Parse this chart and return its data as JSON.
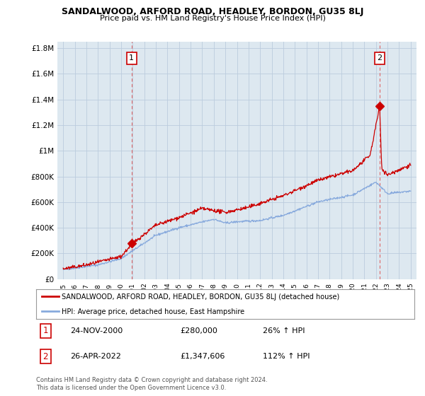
{
  "title": "SANDALWOOD, ARFORD ROAD, HEADLEY, BORDON, GU35 8LJ",
  "subtitle": "Price paid vs. HM Land Registry's House Price Index (HPI)",
  "legend_line1": "SANDALWOOD, ARFORD ROAD, HEADLEY, BORDON, GU35 8LJ (detached house)",
  "legend_line2": "HPI: Average price, detached house, East Hampshire",
  "sale1_label": "1",
  "sale1_date": "24-NOV-2000",
  "sale1_price": "£280,000",
  "sale1_hpi": "26% ↑ HPI",
  "sale2_label": "2",
  "sale2_date": "26-APR-2022",
  "sale2_price": "£1,347,606",
  "sale2_hpi": "112% ↑ HPI",
  "footer": "Contains HM Land Registry data © Crown copyright and database right 2024.\nThis data is licensed under the Open Government Licence v3.0.",
  "sale_color": "#cc0000",
  "hpi_color": "#88aadd",
  "vline_color": "#dd6666",
  "ylim": [
    0,
    1850000
  ],
  "yticks": [
    0,
    200000,
    400000,
    600000,
    800000,
    1000000,
    1200000,
    1400000,
    1600000,
    1800000
  ],
  "ytick_labels": [
    "£0",
    "£200K",
    "£400K",
    "£600K",
    "£800K",
    "£1M",
    "£1.2M",
    "£1.4M",
    "£1.6M",
    "£1.8M"
  ],
  "sale1_year": 2000.9,
  "sale1_value": 280000,
  "sale2_year": 2022.32,
  "sale2_value": 1347606,
  "plot_bg_color": "#dde8f0",
  "background_color": "#ffffff",
  "grid_color": "#bbccdd",
  "label_box_color": "#cc0000"
}
